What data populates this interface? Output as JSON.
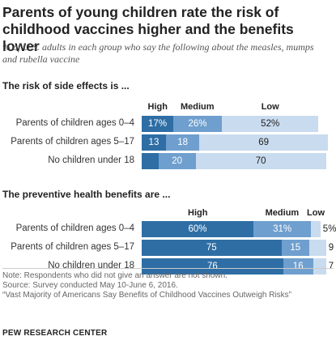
{
  "title": "Parents of young children rate the risk of childhood vaccines higher and the benefits lower",
  "subtitle": "% of U.S. adults in each group who say the following about the measles, mumps and rubella vaccine",
  "colors": {
    "high": "#2e6ea5",
    "medium": "#6f9fce",
    "low": "#c9dbee"
  },
  "chart_data": [
    {
      "type": "bar",
      "title": "The risk of side effects is ...",
      "stacked": true,
      "orientation": "horizontal",
      "categories": [
        "Parents of children ages 0-4",
        "Parents of children ages 5-17",
        "No children under 18"
      ],
      "series": [
        {
          "name": "High",
          "values": [
            17,
            13,
            9
          ],
          "labels": [
            "17%",
            "13",
            "9"
          ]
        },
        {
          "name": "Medium",
          "values": [
            26,
            18,
            20
          ],
          "labels": [
            "26%",
            "18",
            "20"
          ]
        },
        {
          "name": "Low",
          "values": [
            52,
            69,
            70
          ],
          "labels": [
            "52%",
            "69",
            "70"
          ]
        }
      ]
    },
    {
      "type": "bar",
      "title": "The preventive health benefits are ...",
      "stacked": true,
      "orientation": "horizontal",
      "categories": [
        "Parents of children ages 0-4",
        "Parents of children ages 5-17",
        "No children under 18"
      ],
      "series": [
        {
          "name": "High",
          "values": [
            60,
            75,
            76
          ],
          "labels": [
            "60%",
            "75",
            "76"
          ]
        },
        {
          "name": "Medium",
          "values": [
            31,
            15,
            16
          ],
          "labels": [
            "31%",
            "15",
            "16"
          ]
        },
        {
          "name": "Low",
          "values": [
            5,
            9,
            7
          ],
          "labels": [
            "5%",
            "9",
            "7"
          ]
        }
      ]
    }
  ],
  "footer": {
    "note": "Note: Respondents who did not give an answer are not shown.",
    "source": "Source: Survey conducted May 10-June 6, 2016.",
    "report": "“Vast Majority of Americans Say Benefits of Childhood Vaccines Outweigh Risks”",
    "org": "PEW RESEARCH CENTER"
  }
}
